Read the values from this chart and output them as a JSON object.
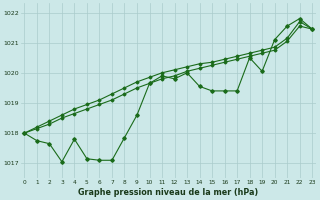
{
  "title": "Graphe pression niveau de la mer (hPa)",
  "background_color": "#cce8e8",
  "grid_color": "#aacccc",
  "line_color": "#1a6b1a",
  "x_values": [
    0,
    1,
    2,
    3,
    4,
    5,
    6,
    7,
    8,
    9,
    10,
    11,
    12,
    13,
    14,
    15,
    16,
    17,
    18,
    19,
    20,
    21,
    22,
    23
  ],
  "line1": [
    1018.0,
    1017.75,
    1017.65,
    1017.05,
    1017.8,
    1017.15,
    1017.1,
    1017.1,
    1017.85,
    1018.6,
    1019.65,
    1019.9,
    1019.8,
    1020.0,
    1019.55,
    1019.4,
    1019.4,
    1019.4,
    1020.5,
    1020.05,
    1021.1,
    1021.55,
    1021.8,
    1021.45
  ],
  "line2": [
    1018.0,
    1018.15,
    1018.3,
    1018.5,
    1018.65,
    1018.8,
    1018.95,
    1019.1,
    1019.3,
    1019.5,
    1019.65,
    1019.8,
    1019.9,
    1020.05,
    1020.15,
    1020.25,
    1020.35,
    1020.45,
    1020.55,
    1020.65,
    1020.75,
    1021.05,
    1021.55,
    1021.45
  ],
  "line3": [
    1018.0,
    1018.2,
    1018.4,
    1018.6,
    1018.8,
    1018.95,
    1019.1,
    1019.3,
    1019.5,
    1019.7,
    1019.85,
    1020.0,
    1020.1,
    1020.2,
    1020.3,
    1020.35,
    1020.45,
    1020.55,
    1020.65,
    1020.75,
    1020.85,
    1021.15,
    1021.7,
    1021.45
  ],
  "ylim": [
    1016.5,
    1022.3
  ],
  "yticks": [
    1017,
    1018,
    1019,
    1020,
    1021,
    1022
  ],
  "xlim": [
    -0.3,
    23.3
  ],
  "xticks": [
    0,
    1,
    2,
    3,
    4,
    5,
    6,
    7,
    8,
    9,
    10,
    11,
    12,
    13,
    14,
    15,
    16,
    17,
    18,
    19,
    20,
    21,
    22,
    23
  ]
}
